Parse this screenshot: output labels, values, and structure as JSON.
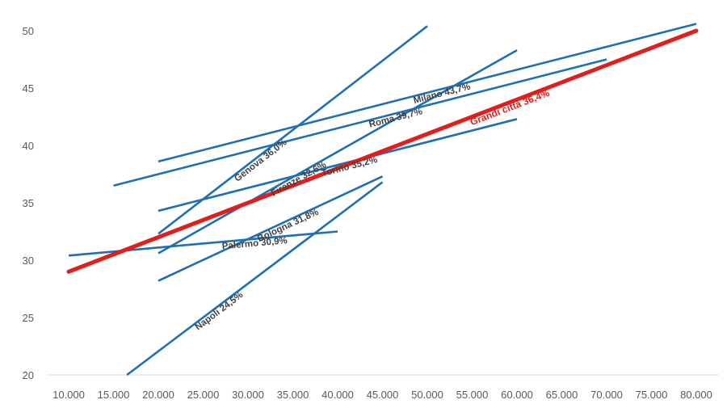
{
  "chart_data": {
    "type": "line",
    "title": "",
    "xlabel": "",
    "ylabel": "",
    "xlim": [
      10000,
      80000
    ],
    "ylim": [
      20,
      50
    ],
    "x_ticks": [
      10000,
      15000,
      20000,
      25000,
      30000,
      35000,
      40000,
      45000,
      50000,
      55000,
      60000,
      65000,
      70000,
      75000,
      80000
    ],
    "x_tick_labels": [
      "10.000",
      "15.000",
      "20.000",
      "25.000",
      "30.000",
      "35.000",
      "40.000",
      "45.000",
      "50.000",
      "55.000",
      "60.000",
      "65.000",
      "70.000",
      "75.000",
      "80.000"
    ],
    "y_ticks": [
      20,
      25,
      30,
      35,
      40,
      45,
      50
    ],
    "y_tick_labels": [
      "20",
      "25",
      "30",
      "35",
      "40",
      "45",
      "50"
    ],
    "grid": false,
    "colors": {
      "series": "#1f6fb5",
      "highlight": "#e31c1c"
    },
    "series": [
      {
        "name": "Milano 43,7%",
        "x": [
          20000,
          80000
        ],
        "y": [
          38.6,
          50.6
        ],
        "color": "#1f6fb5"
      },
      {
        "name": "Roma 39,7%",
        "x": [
          15000,
          70000
        ],
        "y": [
          36.5,
          47.5
        ],
        "color": "#1f6fb5"
      },
      {
        "name": "Genova 36,0%",
        "x": [
          20000,
          50000
        ],
        "y": [
          32.3,
          50.4
        ],
        "color": "#1f6fb5"
      },
      {
        "name": "Torino 35,2%",
        "x": [
          20000,
          60000
        ],
        "y": [
          34.3,
          42.3
        ],
        "color": "#1f6fb5"
      },
      {
        "name": "Firenze 32,6%",
        "x": [
          20000,
          60000
        ],
        "y": [
          30.6,
          48.3
        ],
        "color": "#1f6fb5"
      },
      {
        "name": "Bologna 31,8%",
        "x": [
          20000,
          45000
        ],
        "y": [
          28.2,
          37.3
        ],
        "color": "#1f6fb5"
      },
      {
        "name": "Palermo 30,9%",
        "x": [
          10000,
          40000
        ],
        "y": [
          30.4,
          32.5
        ],
        "color": "#1f6fb5"
      },
      {
        "name": "Napoli 24,5%",
        "x": [
          16500,
          45000
        ],
        "y": [
          20.0,
          36.8
        ],
        "color": "#1f6fb5"
      },
      {
        "name": "Grandi città 36,4%",
        "x": [
          10000,
          80000
        ],
        "y": [
          29.0,
          50.0
        ],
        "color": "#e31c1c",
        "highlight": true
      }
    ]
  }
}
